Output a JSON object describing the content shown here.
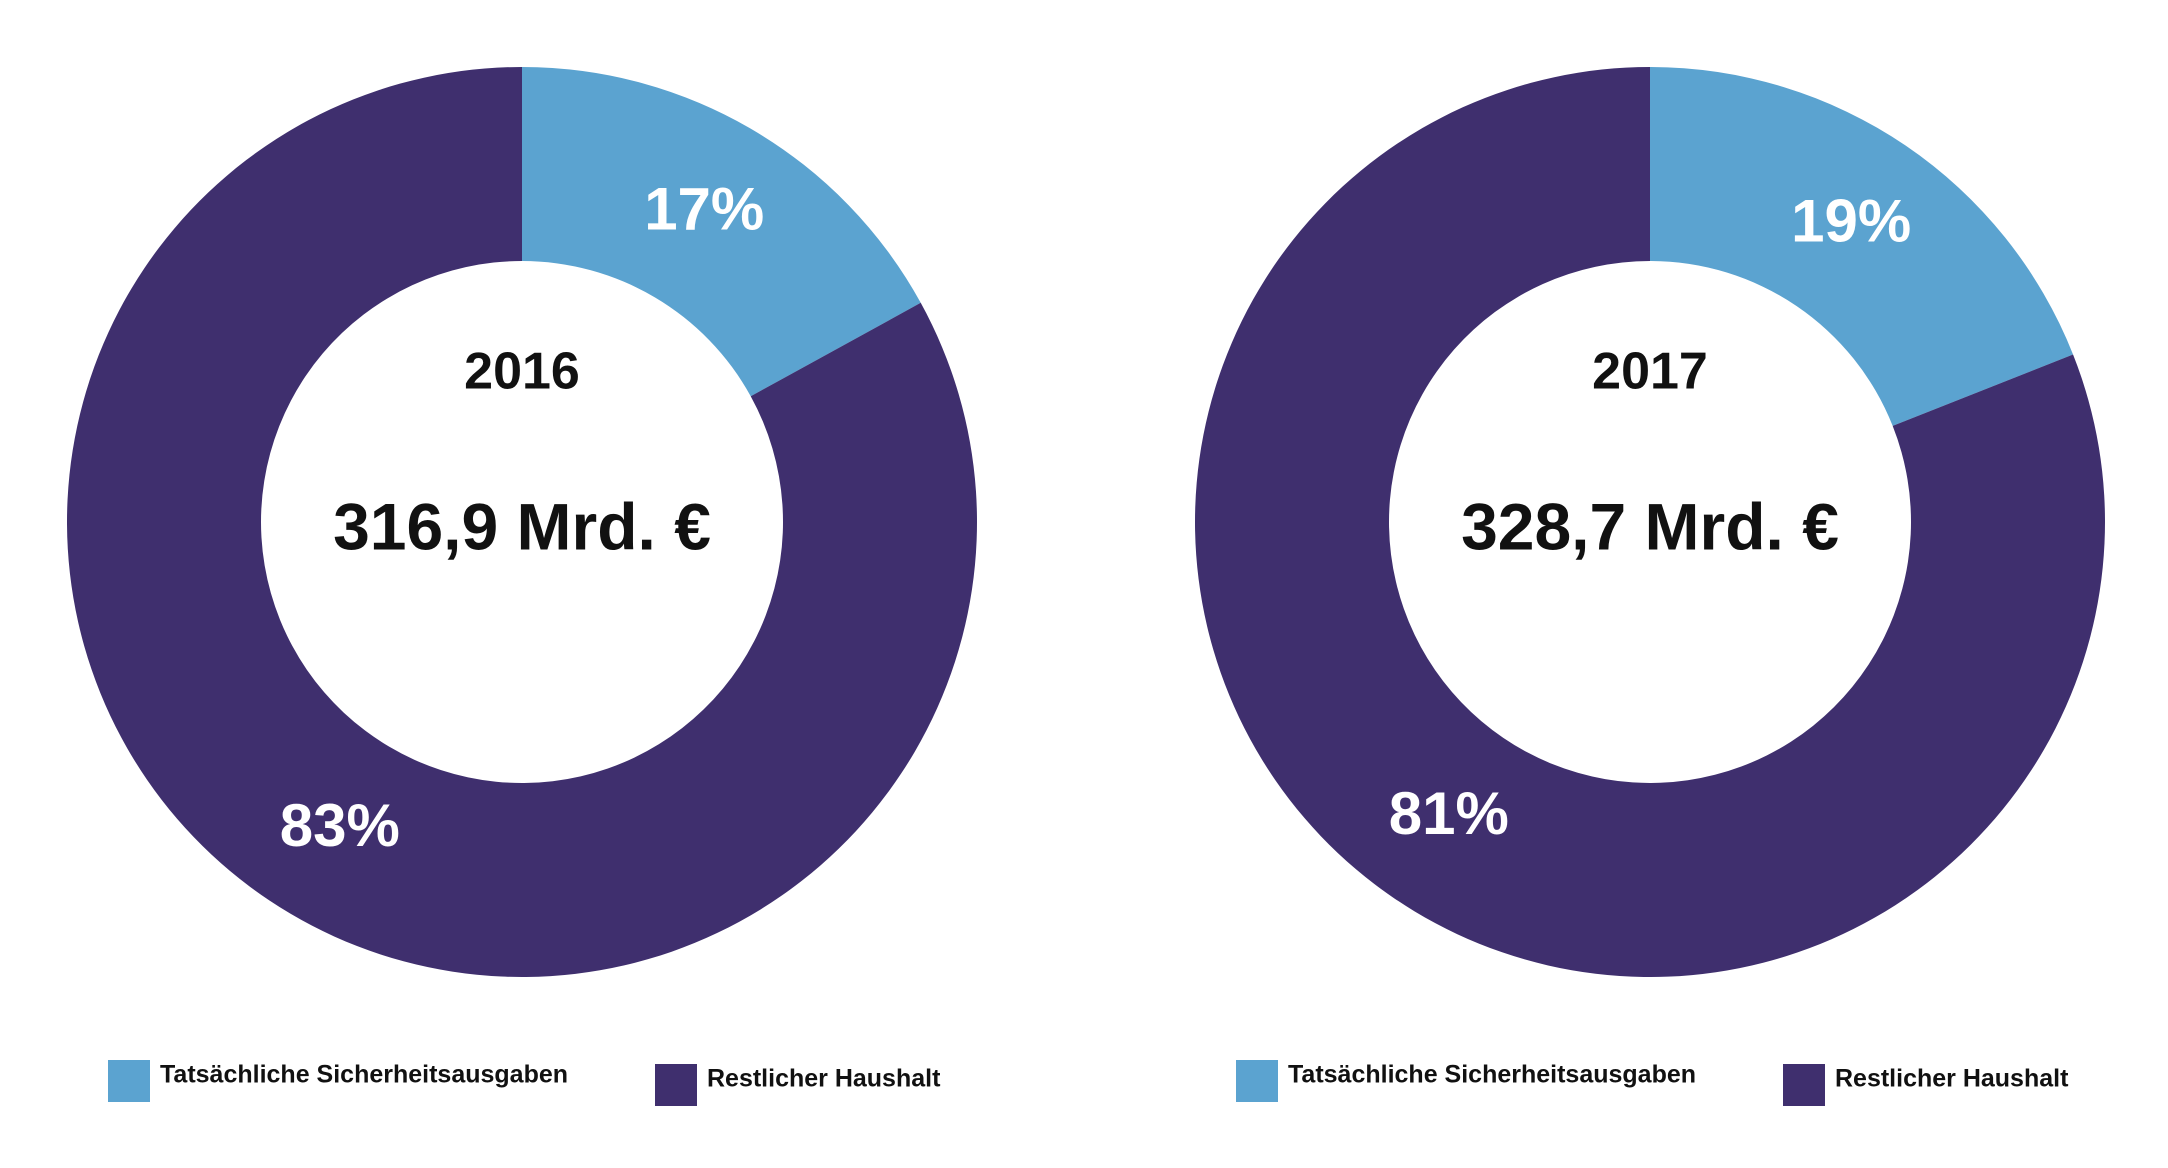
{
  "chart_data": [
    {
      "type": "pie",
      "donut": true,
      "title": "2016",
      "subtitle": "316,9 Mrd. €",
      "categories": [
        "Tatsächliche Sicherheitsausgaben",
        "Restlicher Haushalt"
      ],
      "values": [
        17,
        83
      ],
      "value_labels": [
        "17%",
        "83%"
      ],
      "colors": [
        "#5ba3d0",
        "#3f2f6e"
      ]
    },
    {
      "type": "pie",
      "donut": true,
      "title": "2017",
      "subtitle": "328,7 Mrd. €",
      "categories": [
        "Tatsächliche Sicherheitsausgaben",
        "Restlicher Haushalt"
      ],
      "values": [
        19,
        81
      ],
      "value_labels": [
        "19%",
        "81%"
      ],
      "colors": [
        "#5ba3d0",
        "#3f2f6e"
      ]
    }
  ]
}
